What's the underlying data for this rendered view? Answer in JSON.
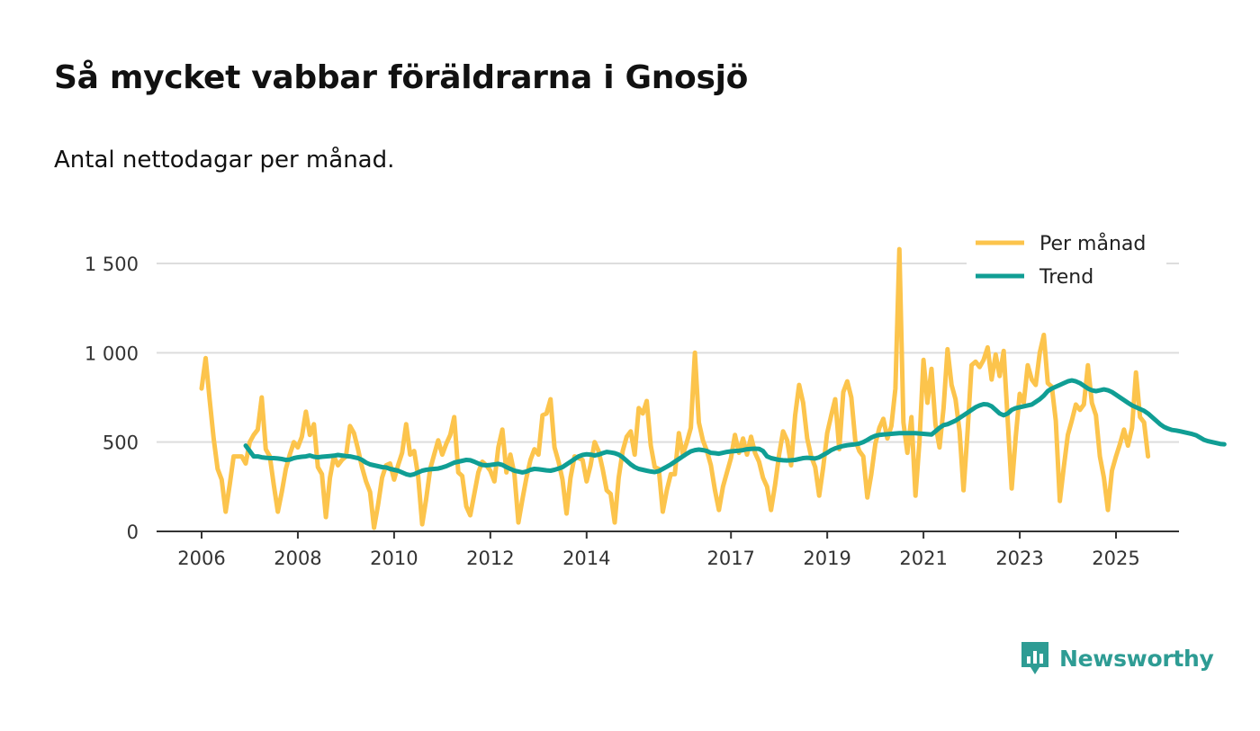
{
  "title": "Så mycket vabbar föräldrarna i Gnosjö",
  "subtitle": "Antal nettodagar per månad.",
  "brand": "Newsworthy",
  "colors": {
    "monthly": "#fcc44c",
    "trend": "#109e94",
    "grid": "#dddddd",
    "axis": "#333333",
    "brand": "#2e9c94"
  },
  "chart_data": {
    "type": "line",
    "title": "Så mycket vabbar föräldrarna i Gnosjö",
    "subtitle": "Antal nettodagar per månad.",
    "xlabel": "",
    "ylabel": "",
    "xlim": [
      2005.6,
      2026.3
    ],
    "ylim": [
      0,
      1600
    ],
    "yticks": [
      0,
      500,
      1000,
      1500
    ],
    "ytick_labels": [
      "0",
      "500",
      "1 000",
      "1 500"
    ],
    "xticks": [
      2006,
      2008,
      2010,
      2012,
      2014,
      2017,
      2019,
      2021,
      2023,
      2025
    ],
    "xtick_labels": [
      "2006",
      "2008",
      "2010",
      "2012",
      "2014",
      "2017",
      "2019",
      "2021",
      "2023",
      "2025"
    ],
    "grid": true,
    "legend_position": "top-right",
    "series": [
      {
        "name": "Per månad",
        "x_start": 2006.0,
        "x_step": 0.08333,
        "values": [
          800,
          970,
          740,
          520,
          350,
          290,
          110,
          260,
          420,
          420,
          420,
          380,
          500,
          540,
          570,
          750,
          460,
          420,
          260,
          110,
          220,
          350,
          430,
          500,
          470,
          530,
          670,
          540,
          600,
          360,
          320,
          80,
          300,
          420,
          370,
          400,
          420,
          590,
          550,
          460,
          360,
          280,
          220,
          20,
          150,
          300,
          370,
          380,
          290,
          370,
          440,
          600,
          430,
          450,
          310,
          40,
          180,
          350,
          430,
          510,
          430,
          490,
          540,
          640,
          330,
          310,
          140,
          90,
          210,
          330,
          390,
          370,
          340,
          280,
          470,
          570,
          330,
          430,
          320,
          50,
          180,
          300,
          400,
          460,
          430,
          650,
          660,
          740,
          470,
          390,
          290,
          100,
          300,
          420,
          410,
          400,
          280,
          370,
          500,
          450,
          350,
          230,
          210,
          50,
          300,
          450,
          530,
          560,
          430,
          690,
          660,
          730,
          480,
          360,
          350,
          110,
          230,
          320,
          320,
          550,
          430,
          500,
          580,
          1000,
          610,
          510,
          450,
          370,
          230,
          120,
          250,
          330,
          410,
          540,
          440,
          520,
          430,
          530,
          440,
          390,
          300,
          250,
          120,
          260,
          430,
          560,
          510,
          370,
          650,
          820,
          720,
          520,
          420,
          360,
          200,
          360,
          550,
          650,
          740,
          460,
          780,
          840,
          750,
          510,
          450,
          420,
          190,
          320,
          490,
          580,
          630,
          520,
          590,
          800,
          1580,
          610,
          440,
          640,
          200,
          500,
          960,
          720,
          910,
          600,
          470,
          690,
          1020,
          820,
          740,
          560,
          230,
          560,
          930,
          950,
          920,
          960,
          1030,
          850,
          990,
          870,
          1010,
          630,
          240,
          530,
          770,
          720,
          930,
          850,
          820,
          1000,
          1100,
          830,
          810,
          620,
          170,
          360,
          540,
          620,
          710,
          680,
          710,
          930,
          720,
          650,
          420,
          300,
          120,
          340,
          420,
          490,
          570,
          480,
          580,
          890,
          640,
          610,
          420
        ]
      },
      {
        "name": "Trend",
        "x_start": 2006.9167,
        "x_step": 0.08333,
        "values": [
          480,
          450,
          420,
          420,
          415,
          412,
          410,
          410,
          408,
          405,
          400,
          402,
          410,
          415,
          418,
          420,
          425,
          418,
          415,
          418,
          420,
          422,
          424,
          428,
          425,
          422,
          420,
          415,
          410,
          400,
          385,
          375,
          370,
          365,
          360,
          358,
          350,
          345,
          340,
          330,
          320,
          315,
          320,
          330,
          340,
          345,
          348,
          350,
          352,
          358,
          365,
          375,
          385,
          390,
          395,
          400,
          398,
          390,
          380,
          372,
          370,
          372,
          375,
          378,
          372,
          360,
          350,
          340,
          335,
          330,
          335,
          345,
          350,
          348,
          345,
          342,
          340,
          345,
          352,
          360,
          375,
          390,
          405,
          420,
          428,
          432,
          430,
          425,
          430,
          438,
          445,
          442,
          438,
          430,
          415,
          395,
          375,
          360,
          350,
          345,
          340,
          335,
          332,
          338,
          350,
          362,
          375,
          390,
          405,
          420,
          435,
          448,
          455,
          458,
          455,
          450,
          440,
          438,
          435,
          440,
          445,
          448,
          450,
          452,
          455,
          460,
          462,
          463,
          462,
          450,
          420,
          410,
          405,
          400,
          398,
          397,
          398,
          400,
          405,
          410,
          412,
          410,
          408,
          415,
          428,
          440,
          455,
          465,
          472,
          478,
          482,
          485,
          488,
          492,
          500,
          512,
          525,
          535,
          540,
          542,
          544,
          546,
          548,
          550,
          550,
          550,
          550,
          550,
          548,
          546,
          544,
          542,
          560,
          580,
          595,
          600,
          610,
          620,
          635,
          650,
          665,
          680,
          695,
          705,
          712,
          710,
          700,
          680,
          660,
          650,
          660,
          680,
          690,
          695,
          700,
          705,
          710,
          725,
          740,
          760,
          785,
          800,
          810,
          820,
          830,
          840,
          845,
          840,
          830,
          815,
          800,
          790,
          785,
          790,
          795,
          790,
          780,
          765,
          750,
          735,
          720,
          705,
          695,
          685,
          675,
          660,
          640,
          620,
          600,
          585,
          575,
          568,
          565,
          560,
          555,
          550,
          545,
          538,
          525,
          512,
          505,
          500,
          495,
          490,
          488
        ]
      }
    ]
  }
}
